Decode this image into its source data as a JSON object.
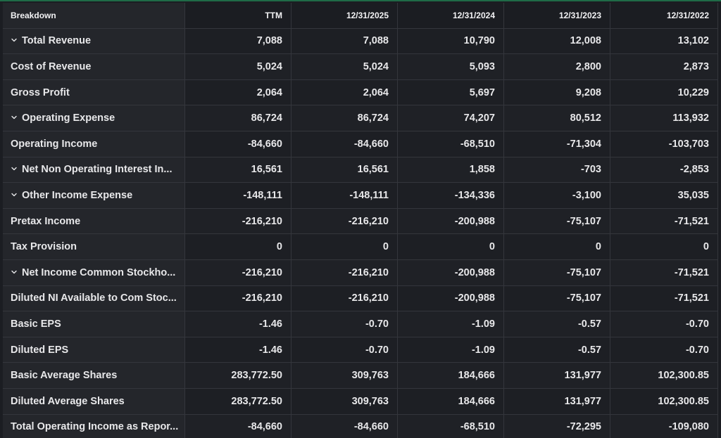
{
  "columns": [
    "Breakdown",
    "TTM",
    "12/31/2025",
    "12/31/2024",
    "12/31/2023",
    "12/31/2022"
  ],
  "rows": [
    {
      "label": "Total Revenue",
      "expandable": true,
      "values": [
        "7,088",
        "7,088",
        "10,790",
        "12,008",
        "13,102"
      ]
    },
    {
      "label": "Cost of Revenue",
      "expandable": false,
      "values": [
        "5,024",
        "5,024",
        "5,093",
        "2,800",
        "2,873"
      ]
    },
    {
      "label": "Gross Profit",
      "expandable": false,
      "values": [
        "2,064",
        "2,064",
        "5,697",
        "9,208",
        "10,229"
      ]
    },
    {
      "label": "Operating Expense",
      "expandable": true,
      "values": [
        "86,724",
        "86,724",
        "74,207",
        "80,512",
        "113,932"
      ]
    },
    {
      "label": "Operating Income",
      "expandable": false,
      "values": [
        "-84,660",
        "-84,660",
        "-68,510",
        "-71,304",
        "-103,703"
      ]
    },
    {
      "label": "Net Non Operating Interest In...",
      "expandable": true,
      "values": [
        "16,561",
        "16,561",
        "1,858",
        "-703",
        "-2,853"
      ]
    },
    {
      "label": "Other Income Expense",
      "expandable": true,
      "values": [
        "-148,111",
        "-148,111",
        "-134,336",
        "-3,100",
        "35,035"
      ]
    },
    {
      "label": "Pretax Income",
      "expandable": false,
      "values": [
        "-216,210",
        "-216,210",
        "-200,988",
        "-75,107",
        "-71,521"
      ]
    },
    {
      "label": "Tax Provision",
      "expandable": false,
      "values": [
        "0",
        "0",
        "0",
        "0",
        "0"
      ]
    },
    {
      "label": "Net Income Common Stockho...",
      "expandable": true,
      "values": [
        "-216,210",
        "-216,210",
        "-200,988",
        "-75,107",
        "-71,521"
      ]
    },
    {
      "label": "Diluted NI Available to Com Stoc...",
      "expandable": false,
      "values": [
        "-216,210",
        "-216,210",
        "-200,988",
        "-75,107",
        "-71,521"
      ]
    },
    {
      "label": "Basic EPS",
      "expandable": false,
      "values": [
        "-1.46",
        "-0.70",
        "-1.09",
        "-0.57",
        "-0.70"
      ]
    },
    {
      "label": "Diluted EPS",
      "expandable": false,
      "values": [
        "-1.46",
        "-0.70",
        "-1.09",
        "-0.57",
        "-0.70"
      ]
    },
    {
      "label": "Basic Average Shares",
      "expandable": false,
      "values": [
        "283,772.50",
        "309,763",
        "184,666",
        "131,977",
        "102,300.85"
      ]
    },
    {
      "label": "Diluted Average Shares",
      "expandable": false,
      "values": [
        "283,772.50",
        "309,763",
        "184,666",
        "131,977",
        "102,300.85"
      ]
    },
    {
      "label": "Total Operating Income as Repor...",
      "expandable": false,
      "values": [
        "-84,660",
        "-84,660",
        "-68,510",
        "-72,295",
        "-109,080"
      ]
    }
  ]
}
